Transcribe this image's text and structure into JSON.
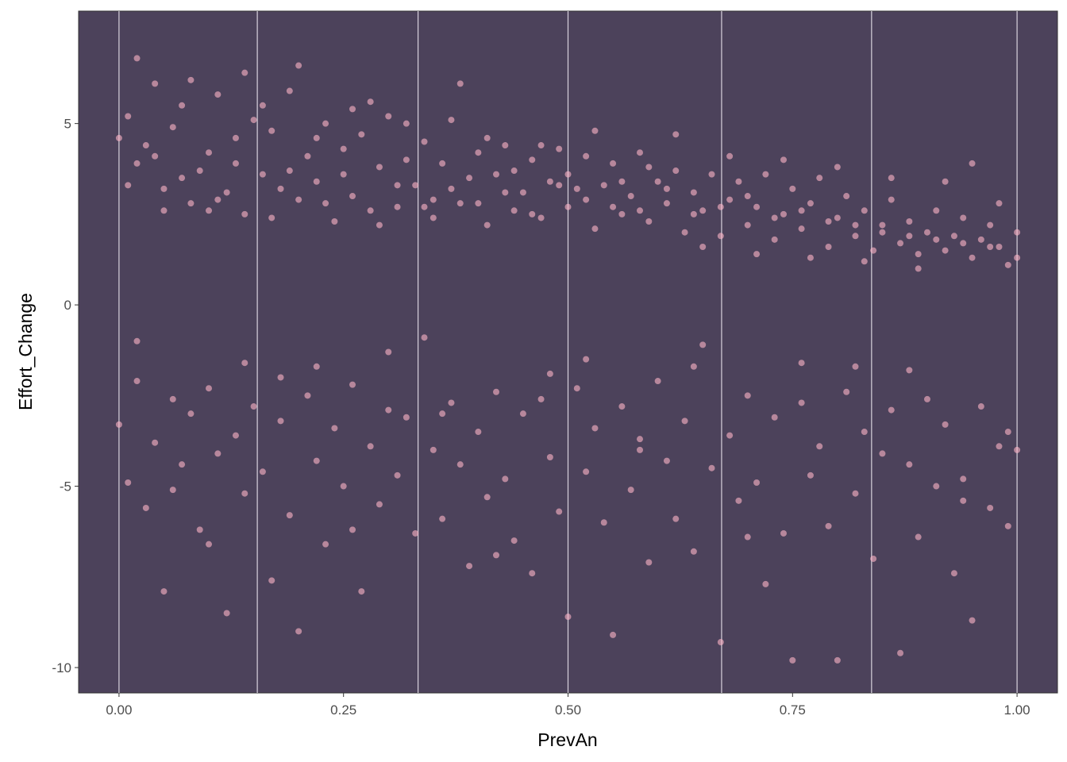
{
  "chart_data": {
    "type": "scatter",
    "title": "",
    "xlabel": "PrevAn",
    "ylabel": "Effort_Change",
    "xlim": [
      -0.045,
      1.045
    ],
    "ylim": [
      -10.7,
      8.1
    ],
    "x_ticks": [
      0.0,
      0.25,
      0.5,
      0.75,
      1.0
    ],
    "x_tick_labels": [
      "0.00",
      "0.25",
      "0.50",
      "0.75",
      "1.00"
    ],
    "y_ticks": [
      -10,
      -5,
      0,
      5
    ],
    "y_tick_labels": [
      "-10",
      "-5",
      "0",
      "5"
    ],
    "vlines_x": [
      0.0,
      0.154,
      0.333,
      0.5,
      0.671,
      0.838,
      1.0
    ],
    "colors": {
      "panel_background": "#4c425b",
      "point": "#ffb6c8",
      "vline": "#d9d3de",
      "axis_line": "#333333"
    },
    "grid": false,
    "legend": "none",
    "series": [
      {
        "cluster": "positive",
        "points": [
          [
            0.0,
            4.6
          ],
          [
            0.01,
            5.2
          ],
          [
            0.02,
            3.9
          ],
          [
            0.03,
            4.4
          ],
          [
            0.04,
            6.1
          ],
          [
            0.05,
            3.2
          ],
          [
            0.06,
            4.9
          ],
          [
            0.07,
            5.5
          ],
          [
            0.08,
            2.8
          ],
          [
            0.09,
            3.7
          ],
          [
            0.1,
            4.2
          ],
          [
            0.11,
            5.8
          ],
          [
            0.12,
            3.1
          ],
          [
            0.13,
            4.6
          ],
          [
            0.14,
            2.5
          ],
          [
            0.15,
            5.1
          ],
          [
            0.16,
            3.6
          ],
          [
            0.17,
            4.8
          ],
          [
            0.18,
            3.2
          ],
          [
            0.19,
            5.9
          ],
          [
            0.2,
            2.9
          ],
          [
            0.21,
            4.1
          ],
          [
            0.22,
            3.4
          ],
          [
            0.23,
            5.0
          ],
          [
            0.24,
            2.3
          ],
          [
            0.25,
            4.3
          ],
          [
            0.26,
            3.0
          ],
          [
            0.27,
            4.7
          ],
          [
            0.28,
            2.6
          ],
          [
            0.29,
            3.8
          ],
          [
            0.3,
            5.2
          ],
          [
            0.31,
            2.7
          ],
          [
            0.32,
            4.0
          ],
          [
            0.33,
            3.3
          ],
          [
            0.34,
            4.5
          ],
          [
            0.35,
            2.4
          ],
          [
            0.36,
            3.9
          ],
          [
            0.37,
            5.1
          ],
          [
            0.38,
            2.8
          ],
          [
            0.39,
            3.5
          ],
          [
            0.4,
            4.2
          ],
          [
            0.41,
            2.2
          ],
          [
            0.42,
            3.6
          ],
          [
            0.43,
            4.4
          ],
          [
            0.44,
            2.6
          ],
          [
            0.45,
            3.1
          ],
          [
            0.46,
            4.0
          ],
          [
            0.47,
            2.4
          ],
          [
            0.48,
            3.4
          ],
          [
            0.49,
            4.3
          ],
          [
            0.5,
            2.7
          ],
          [
            0.51,
            3.2
          ],
          [
            0.52,
            4.1
          ],
          [
            0.53,
            2.1
          ],
          [
            0.54,
            3.3
          ],
          [
            0.55,
            3.9
          ],
          [
            0.56,
            2.5
          ],
          [
            0.57,
            3.0
          ],
          [
            0.58,
            4.2
          ],
          [
            0.59,
            2.3
          ],
          [
            0.6,
            3.4
          ],
          [
            0.61,
            2.8
          ],
          [
            0.62,
            3.7
          ],
          [
            0.63,
            2.0
          ],
          [
            0.64,
            3.1
          ],
          [
            0.65,
            2.6
          ],
          [
            0.66,
            3.6
          ],
          [
            0.67,
            1.9
          ],
          [
            0.68,
            2.9
          ],
          [
            0.69,
            3.4
          ],
          [
            0.7,
            2.2
          ],
          [
            0.71,
            2.7
          ],
          [
            0.72,
            3.6
          ],
          [
            0.73,
            1.8
          ],
          [
            0.74,
            2.5
          ],
          [
            0.75,
            3.2
          ],
          [
            0.76,
            2.1
          ],
          [
            0.77,
            2.8
          ],
          [
            0.78,
            3.5
          ],
          [
            0.79,
            1.6
          ],
          [
            0.8,
            2.4
          ],
          [
            0.81,
            3.0
          ],
          [
            0.82,
            1.9
          ],
          [
            0.83,
            2.6
          ],
          [
            0.84,
            1.5
          ],
          [
            0.85,
            2.2
          ],
          [
            0.86,
            2.9
          ],
          [
            0.87,
            1.7
          ],
          [
            0.88,
            2.3
          ],
          [
            0.89,
            1.4
          ],
          [
            0.9,
            2.0
          ],
          [
            0.91,
            2.6
          ],
          [
            0.92,
            1.5
          ],
          [
            0.93,
            1.9
          ],
          [
            0.94,
            2.4
          ],
          [
            0.95,
            1.3
          ],
          [
            0.96,
            1.8
          ],
          [
            0.97,
            2.2
          ],
          [
            0.98,
            1.6
          ],
          [
            0.99,
            1.1
          ],
          [
            1.0,
            2.0
          ],
          [
            0.02,
            6.8
          ],
          [
            0.05,
            2.6
          ],
          [
            0.08,
            6.2
          ],
          [
            0.11,
            2.9
          ],
          [
            0.14,
            6.4
          ],
          [
            0.17,
            2.4
          ],
          [
            0.2,
            6.6
          ],
          [
            0.23,
            2.8
          ],
          [
            0.26,
            5.4
          ],
          [
            0.29,
            2.2
          ],
          [
            0.32,
            5.0
          ],
          [
            0.35,
            2.9
          ],
          [
            0.38,
            6.1
          ],
          [
            0.41,
            4.6
          ],
          [
            0.44,
            3.7
          ],
          [
            0.47,
            4.4
          ],
          [
            0.5,
            3.6
          ],
          [
            0.53,
            4.8
          ],
          [
            0.56,
            3.4
          ],
          [
            0.59,
            3.8
          ],
          [
            0.62,
            4.7
          ],
          [
            0.65,
            1.6
          ],
          [
            0.68,
            4.1
          ],
          [
            0.71,
            1.4
          ],
          [
            0.74,
            4.0
          ],
          [
            0.77,
            1.3
          ],
          [
            0.8,
            3.8
          ],
          [
            0.83,
            1.2
          ],
          [
            0.86,
            3.5
          ],
          [
            0.89,
            1.0
          ],
          [
            0.92,
            3.4
          ],
          [
            0.95,
            3.9
          ],
          [
            0.98,
            2.8
          ],
          [
            0.01,
            3.3
          ],
          [
            0.04,
            4.1
          ],
          [
            0.07,
            3.5
          ],
          [
            0.1,
            2.6
          ],
          [
            0.13,
            3.9
          ],
          [
            0.16,
            5.5
          ],
          [
            0.19,
            3.7
          ],
          [
            0.22,
            4.6
          ],
          [
            0.25,
            3.6
          ],
          [
            0.28,
            5.6
          ],
          [
            0.31,
            3.3
          ],
          [
            0.34,
            2.7
          ],
          [
            0.37,
            3.2
          ],
          [
            0.4,
            2.8
          ],
          [
            0.43,
            3.1
          ],
          [
            0.46,
            2.5
          ],
          [
            0.49,
            3.3
          ],
          [
            0.52,
            2.9
          ],
          [
            0.55,
            2.7
          ],
          [
            0.58,
            2.6
          ],
          [
            0.61,
            3.2
          ],
          [
            0.64,
            2.5
          ],
          [
            0.67,
            2.7
          ],
          [
            0.7,
            3.0
          ],
          [
            0.73,
            2.4
          ],
          [
            0.76,
            2.6
          ],
          [
            0.79,
            2.3
          ],
          [
            0.82,
            2.2
          ],
          [
            0.85,
            2.0
          ],
          [
            0.88,
            1.9
          ],
          [
            0.91,
            1.8
          ],
          [
            0.94,
            1.7
          ],
          [
            0.97,
            1.6
          ],
          [
            1.0,
            1.3
          ]
        ]
      },
      {
        "cluster": "negative",
        "points": [
          [
            0.0,
            -3.3
          ],
          [
            0.01,
            -4.9
          ],
          [
            0.02,
            -2.1
          ],
          [
            0.03,
            -5.6
          ],
          [
            0.04,
            -3.8
          ],
          [
            0.05,
            -7.9
          ],
          [
            0.06,
            -2.6
          ],
          [
            0.07,
            -4.4
          ],
          [
            0.08,
            -3.0
          ],
          [
            0.09,
            -6.2
          ],
          [
            0.1,
            -2.3
          ],
          [
            0.11,
            -4.1
          ],
          [
            0.12,
            -8.5
          ],
          [
            0.13,
            -3.6
          ],
          [
            0.14,
            -5.2
          ],
          [
            0.15,
            -2.8
          ],
          [
            0.16,
            -4.6
          ],
          [
            0.17,
            -7.6
          ],
          [
            0.18,
            -3.2
          ],
          [
            0.19,
            -5.8
          ],
          [
            0.2,
            -9.0
          ],
          [
            0.21,
            -2.5
          ],
          [
            0.22,
            -4.3
          ],
          [
            0.23,
            -6.6
          ],
          [
            0.24,
            -3.4
          ],
          [
            0.25,
            -5.0
          ],
          [
            0.26,
            -2.2
          ],
          [
            0.27,
            -7.9
          ],
          [
            0.28,
            -3.9
          ],
          [
            0.29,
            -5.5
          ],
          [
            0.3,
            -2.9
          ],
          [
            0.31,
            -4.7
          ],
          [
            0.32,
            -3.1
          ],
          [
            0.33,
            -6.3
          ],
          [
            0.34,
            -0.9
          ],
          [
            0.35,
            -4.0
          ],
          [
            0.36,
            -5.9
          ],
          [
            0.37,
            -2.7
          ],
          [
            0.38,
            -4.4
          ],
          [
            0.39,
            -7.2
          ],
          [
            0.4,
            -3.5
          ],
          [
            0.41,
            -5.3
          ],
          [
            0.42,
            -2.4
          ],
          [
            0.43,
            -4.8
          ],
          [
            0.44,
            -6.5
          ],
          [
            0.45,
            -3.0
          ],
          [
            0.46,
            -7.4
          ],
          [
            0.47,
            -2.6
          ],
          [
            0.48,
            -4.2
          ],
          [
            0.49,
            -5.7
          ],
          [
            0.5,
            -8.6
          ],
          [
            0.51,
            -2.3
          ],
          [
            0.52,
            -4.6
          ],
          [
            0.53,
            -3.4
          ],
          [
            0.54,
            -6.0
          ],
          [
            0.55,
            -9.1
          ],
          [
            0.56,
            -2.8
          ],
          [
            0.57,
            -5.1
          ],
          [
            0.58,
            -3.7
          ],
          [
            0.59,
            -7.1
          ],
          [
            0.6,
            -2.1
          ],
          [
            0.61,
            -4.3
          ],
          [
            0.62,
            -5.9
          ],
          [
            0.63,
            -3.2
          ],
          [
            0.64,
            -6.8
          ],
          [
            0.65,
            -1.1
          ],
          [
            0.66,
            -4.5
          ],
          [
            0.67,
            -9.3
          ],
          [
            0.68,
            -3.6
          ],
          [
            0.69,
            -5.4
          ],
          [
            0.7,
            -2.5
          ],
          [
            0.71,
            -4.9
          ],
          [
            0.72,
            -7.7
          ],
          [
            0.73,
            -3.1
          ],
          [
            0.74,
            -6.3
          ],
          [
            0.75,
            -9.8
          ],
          [
            0.76,
            -2.7
          ],
          [
            0.77,
            -4.7
          ],
          [
            0.78,
            -3.9
          ],
          [
            0.79,
            -6.1
          ],
          [
            0.8,
            -9.8
          ],
          [
            0.81,
            -2.4
          ],
          [
            0.82,
            -5.2
          ],
          [
            0.83,
            -3.5
          ],
          [
            0.84,
            -7.0
          ],
          [
            0.85,
            -4.1
          ],
          [
            0.86,
            -2.9
          ],
          [
            0.87,
            -9.6
          ],
          [
            0.88,
            -4.4
          ],
          [
            0.89,
            -6.4
          ],
          [
            0.9,
            -2.6
          ],
          [
            0.91,
            -5.0
          ],
          [
            0.92,
            -3.3
          ],
          [
            0.93,
            -7.4
          ],
          [
            0.94,
            -4.8
          ],
          [
            0.95,
            -8.7
          ],
          [
            0.96,
            -2.8
          ],
          [
            0.97,
            -5.6
          ],
          [
            0.98,
            -3.9
          ],
          [
            0.99,
            -6.1
          ],
          [
            1.0,
            -4.0
          ],
          [
            0.02,
            -1.0
          ],
          [
            0.06,
            -5.1
          ],
          [
            0.1,
            -6.6
          ],
          [
            0.14,
            -1.6
          ],
          [
            0.18,
            -2.0
          ],
          [
            0.22,
            -1.7
          ],
          [
            0.26,
            -6.2
          ],
          [
            0.3,
            -1.3
          ],
          [
            0.36,
            -3.0
          ],
          [
            0.42,
            -6.9
          ],
          [
            0.48,
            -1.9
          ],
          [
            0.52,
            -1.5
          ],
          [
            0.58,
            -4.0
          ],
          [
            0.64,
            -1.7
          ],
          [
            0.7,
            -6.4
          ],
          [
            0.76,
            -1.6
          ],
          [
            0.82,
            -1.7
          ],
          [
            0.88,
            -1.8
          ],
          [
            0.94,
            -5.4
          ],
          [
            0.99,
            -3.5
          ]
        ]
      }
    ]
  }
}
